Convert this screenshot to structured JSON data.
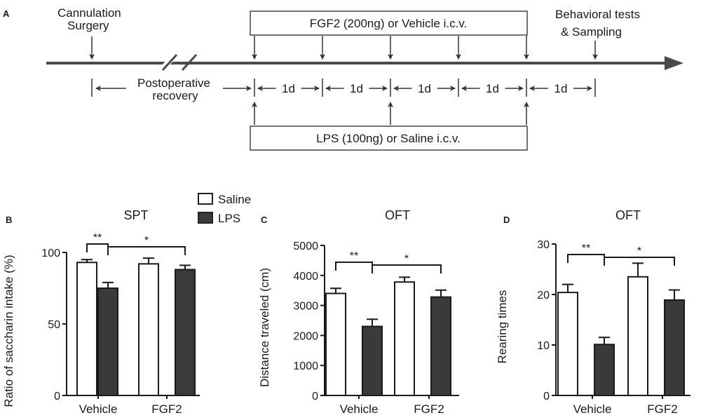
{
  "timeline": {
    "panel_label": "A",
    "cannulation": [
      "Cannulation",
      "Surgery"
    ],
    "behavioral": [
      "Behavioral tests",
      "& Sampling"
    ],
    "fgf2_box": "FGF2 (200ng) or Vehicle  i.c.v.",
    "lps_box": "LPS (100ng) or Saline  i.c.v.",
    "postop": [
      "Postoperative",
      "recovery"
    ],
    "day_labels": [
      "1d",
      "1d",
      "1d",
      "1d",
      "1d"
    ]
  },
  "legend": {
    "items": [
      {
        "label": "Saline",
        "color": "#ffffff"
      },
      {
        "label": "LPS",
        "color": "#3a3a3a"
      }
    ]
  },
  "colors": {
    "saline": "#ffffff",
    "lps": "#3a3a3a",
    "axis": "#1a1a1a"
  },
  "chart_data": [
    {
      "type": "bar",
      "panel": "B",
      "title": "SPT",
      "ylabel": "Ratio of saccharin intake (%)",
      "ylim": [
        0,
        100
      ],
      "yticks": [
        "0",
        "50",
        "100"
      ],
      "categories": [
        "Vehicle",
        "FGF2"
      ],
      "series": [
        {
          "name": "Saline",
          "values": [
            93,
            92
          ],
          "errors": [
            2,
            4
          ]
        },
        {
          "name": "LPS",
          "values": [
            75,
            88
          ],
          "errors": [
            4,
            3
          ]
        }
      ],
      "significance": [
        {
          "label": "**",
          "from": [
            0,
            0
          ],
          "to": [
            0,
            1
          ]
        },
        {
          "label": "*",
          "from": [
            0,
            1
          ],
          "to": [
            1,
            1
          ]
        }
      ]
    },
    {
      "type": "bar",
      "panel": "C",
      "title": "OFT",
      "ylabel": "Distance traveled (cm)",
      "ylim": [
        0,
        5000
      ],
      "yticks": [
        "0",
        "1000",
        "2000",
        "3000",
        "4000",
        "5000"
      ],
      "categories": [
        "Vehicle",
        "FGF2"
      ],
      "series": [
        {
          "name": "Saline",
          "values": [
            3400,
            3780
          ],
          "errors": [
            170,
            160
          ]
        },
        {
          "name": "LPS",
          "values": [
            2300,
            3280
          ],
          "errors": [
            240,
            230
          ]
        }
      ],
      "significance": [
        {
          "label": "**",
          "from": [
            0,
            0
          ],
          "to": [
            0,
            1
          ]
        },
        {
          "label": "*",
          "from": [
            0,
            1
          ],
          "to": [
            1,
            1
          ]
        }
      ]
    },
    {
      "type": "bar",
      "panel": "D",
      "title": "OFT",
      "ylabel": "Rearing times",
      "ylim": [
        0,
        30
      ],
      "yticks": [
        "0",
        "10",
        "20",
        "30"
      ],
      "categories": [
        "Vehicle",
        "FGF2"
      ],
      "series": [
        {
          "name": "Saline",
          "values": [
            20.4,
            23.5
          ],
          "errors": [
            1.6,
            2.7
          ]
        },
        {
          "name": "LPS",
          "values": [
            10.1,
            18.9
          ],
          "errors": [
            1.4,
            2.0
          ]
        }
      ],
      "significance": [
        {
          "label": "**",
          "from": [
            0,
            0
          ],
          "to": [
            0,
            1
          ]
        },
        {
          "label": "*",
          "from": [
            0,
            1
          ],
          "to": [
            1,
            1
          ]
        }
      ]
    }
  ]
}
